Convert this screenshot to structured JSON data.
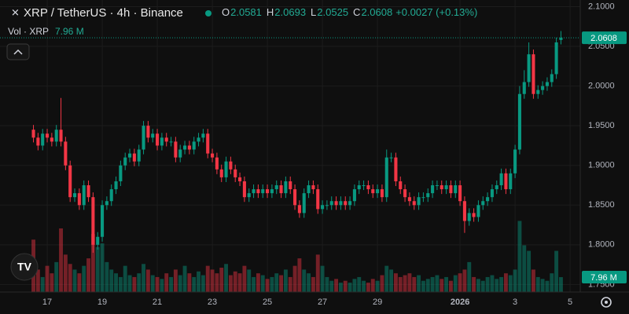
{
  "chart_data": {
    "type": "candlestick",
    "title": "XRP / TetherUS · 4h · Binance",
    "ohlc_labels": [
      "O",
      "H",
      "L",
      "C"
    ],
    "change_label": "+0.0027 (+0.13%)",
    "volume_title": "Vol · XRP",
    "last_volume_label": "7.96 M",
    "up_color": "#089981",
    "down_color": "#f23645",
    "grid": true,
    "open": [
      1.945,
      1.935,
      1.925,
      1.94,
      1.935,
      1.93,
      1.945,
      1.93,
      1.9,
      1.86,
      1.865,
      1.85,
      1.875,
      1.86,
      1.8,
      1.81,
      1.85,
      1.855,
      1.87,
      1.88,
      1.9,
      1.91,
      1.915,
      1.905,
      1.92,
      1.95,
      1.935,
      1.94,
      1.925,
      1.935,
      1.93,
      1.93,
      1.91,
      1.92,
      1.925,
      1.92,
      1.93,
      1.935,
      1.94,
      1.915,
      1.91,
      1.895,
      1.885,
      1.905,
      1.895,
      1.885,
      1.88,
      1.86,
      1.865,
      1.87,
      1.865,
      1.87,
      1.865,
      1.87,
      1.875,
      1.865,
      1.88,
      1.87,
      1.85,
      1.84,
      1.865,
      1.875,
      1.87,
      1.845,
      1.85,
      1.85,
      1.855,
      1.85,
      1.855,
      1.85,
      1.855,
      1.87,
      1.875,
      1.875,
      1.87,
      1.865,
      1.87,
      1.86,
      1.91,
      1.91,
      1.88,
      1.87,
      1.86,
      1.855,
      1.85,
      1.86,
      1.86,
      1.865,
      1.875,
      1.875,
      1.87,
      1.875,
      1.865,
      1.875,
      1.855,
      1.83,
      1.84,
      1.835,
      1.85,
      1.855,
      1.86,
      1.87,
      1.875,
      1.89,
      1.87,
      1.89,
      1.92,
      1.99,
      2.005,
      2.04,
      1.99,
      1.995,
      2.0,
      2.005,
      2.015,
      2.0581
    ],
    "high": [
      1.951,
      1.941,
      1.946,
      1.946,
      1.941,
      1.951,
      1.985,
      1.936,
      1.906,
      1.871,
      1.871,
      1.881,
      1.881,
      1.866,
      1.816,
      1.856,
      1.861,
      1.876,
      1.886,
      1.906,
      1.916,
      1.921,
      1.921,
      1.926,
      1.956,
      1.956,
      1.946,
      1.946,
      1.941,
      1.941,
      1.936,
      1.936,
      1.926,
      1.931,
      1.931,
      1.936,
      1.941,
      1.946,
      1.946,
      1.921,
      1.916,
      1.901,
      1.911,
      1.911,
      1.901,
      1.891,
      1.886,
      1.871,
      1.876,
      1.876,
      1.876,
      1.876,
      1.876,
      1.881,
      1.881,
      1.886,
      1.886,
      1.876,
      1.856,
      1.871,
      1.881,
      1.881,
      1.876,
      1.856,
      1.856,
      1.861,
      1.861,
      1.861,
      1.861,
      1.861,
      1.876,
      1.881,
      1.881,
      1.881,
      1.876,
      1.876,
      1.876,
      1.92,
      1.916,
      1.916,
      1.886,
      1.876,
      1.866,
      1.861,
      1.866,
      1.866,
      1.871,
      1.881,
      1.881,
      1.881,
      1.881,
      1.881,
      1.881,
      1.881,
      1.861,
      1.846,
      1.846,
      1.856,
      1.861,
      1.866,
      1.876,
      1.881,
      1.896,
      1.896,
      1.896,
      1.926,
      2.0,
      2.02,
      2.055,
      2.046,
      2.001,
      2.006,
      2.011,
      2.021,
      2.061,
      2.0693
    ],
    "low": [
      1.929,
      1.919,
      1.919,
      1.929,
      1.924,
      1.924,
      1.924,
      1.894,
      1.854,
      1.854,
      1.844,
      1.844,
      1.854,
      1.79,
      1.794,
      1.804,
      1.844,
      1.849,
      1.864,
      1.874,
      1.894,
      1.904,
      1.899,
      1.899,
      1.914,
      1.929,
      1.929,
      1.919,
      1.919,
      1.924,
      1.924,
      1.904,
      1.904,
      1.914,
      1.914,
      1.914,
      1.924,
      1.929,
      1.909,
      1.904,
      1.889,
      1.879,
      1.879,
      1.889,
      1.879,
      1.874,
      1.854,
      1.854,
      1.859,
      1.859,
      1.859,
      1.859,
      1.859,
      1.864,
      1.859,
      1.859,
      1.864,
      1.844,
      1.834,
      1.834,
      1.859,
      1.864,
      1.839,
      1.839,
      1.844,
      1.844,
      1.844,
      1.844,
      1.844,
      1.844,
      1.849,
      1.864,
      1.869,
      1.864,
      1.859,
      1.859,
      1.854,
      1.854,
      1.904,
      1.874,
      1.864,
      1.854,
      1.849,
      1.844,
      1.844,
      1.854,
      1.854,
      1.859,
      1.869,
      1.864,
      1.864,
      1.859,
      1.859,
      1.849,
      1.815,
      1.824,
      1.829,
      1.829,
      1.844,
      1.849,
      1.854,
      1.864,
      1.869,
      1.864,
      1.864,
      1.884,
      1.914,
      1.984,
      1.999,
      1.984,
      1.984,
      1.989,
      1.994,
      1.999,
      2.009,
      2.0525
    ],
    "close": [
      1.935,
      1.925,
      1.94,
      1.935,
      1.93,
      1.945,
      1.93,
      1.9,
      1.86,
      1.865,
      1.85,
      1.875,
      1.86,
      1.8,
      1.81,
      1.85,
      1.855,
      1.87,
      1.88,
      1.9,
      1.91,
      1.915,
      1.905,
      1.92,
      1.95,
      1.935,
      1.94,
      1.925,
      1.935,
      1.93,
      1.93,
      1.91,
      1.92,
      1.925,
      1.92,
      1.93,
      1.935,
      1.94,
      1.915,
      1.91,
      1.895,
      1.885,
      1.905,
      1.895,
      1.885,
      1.88,
      1.86,
      1.865,
      1.87,
      1.865,
      1.87,
      1.865,
      1.87,
      1.875,
      1.865,
      1.88,
      1.87,
      1.85,
      1.84,
      1.865,
      1.875,
      1.87,
      1.845,
      1.85,
      1.85,
      1.855,
      1.85,
      1.855,
      1.85,
      1.855,
      1.87,
      1.875,
      1.875,
      1.87,
      1.865,
      1.87,
      1.86,
      1.91,
      1.91,
      1.88,
      1.87,
      1.86,
      1.855,
      1.85,
      1.86,
      1.86,
      1.865,
      1.875,
      1.875,
      1.87,
      1.875,
      1.865,
      1.875,
      1.855,
      1.83,
      1.84,
      1.835,
      1.85,
      1.855,
      1.86,
      1.87,
      1.875,
      1.89,
      1.87,
      1.89,
      1.92,
      1.99,
      2.005,
      2.04,
      1.99,
      1.995,
      2.0,
      2.005,
      2.015,
      2.055,
      2.0608
    ],
    "volume": [
      28,
      12,
      8,
      14,
      10,
      16,
      34,
      20,
      15,
      12,
      10,
      14,
      18,
      31,
      24,
      26,
      16,
      12,
      10,
      8,
      14,
      9,
      8,
      10,
      15,
      12,
      9,
      8,
      7,
      10,
      8,
      12,
      9,
      14,
      10,
      8,
      11,
      9,
      14,
      12,
      10,
      13,
      15,
      9,
      11,
      10,
      14,
      12,
      8,
      10,
      9,
      7,
      8,
      10,
      9,
      12,
      8,
      14,
      18,
      12,
      10,
      8,
      20,
      14,
      8,
      6,
      7,
      5,
      6,
      5,
      7,
      8,
      6,
      5,
      7,
      6,
      9,
      14,
      12,
      10,
      8,
      9,
      10,
      8,
      9,
      6,
      7,
      8,
      9,
      7,
      8,
      6,
      9,
      10,
      12,
      16,
      8,
      7,
      6,
      8,
      9,
      7,
      8,
      10,
      9,
      12,
      38,
      25,
      22,
      12,
      8,
      7,
      6,
      10,
      22,
      7.96
    ],
    "volume_lim": [
      0,
      60
    ],
    "ylim": [
      1.7405,
      2.1084
    ],
    "yticks": [
      {
        "value": 1.75,
        "label": "1.7500"
      },
      {
        "value": 1.8,
        "label": "1.8000"
      },
      {
        "value": 1.85,
        "label": "1.8500"
      },
      {
        "value": 1.9,
        "label": "1.9000"
      },
      {
        "value": 1.95,
        "label": "1.9500"
      },
      {
        "value": 2.0,
        "label": "2.0000"
      },
      {
        "value": 2.05,
        "label": "2.0500"
      },
      {
        "value": 2.1,
        "label": "2.1000"
      }
    ],
    "xlim": [
      -7.29,
      119.21
    ],
    "xticks": [
      {
        "value": 3,
        "label": "17"
      },
      {
        "value": 15,
        "label": "19"
      },
      {
        "value": 27,
        "label": "21"
      },
      {
        "value": 39,
        "label": "23"
      },
      {
        "value": 51,
        "label": "25"
      },
      {
        "value": 63,
        "label": "27"
      },
      {
        "value": 75,
        "label": "29"
      },
      {
        "value": 93,
        "label": "2026"
      },
      {
        "value": 105,
        "label": "3"
      },
      {
        "value": 117,
        "label": "5"
      }
    ]
  }
}
